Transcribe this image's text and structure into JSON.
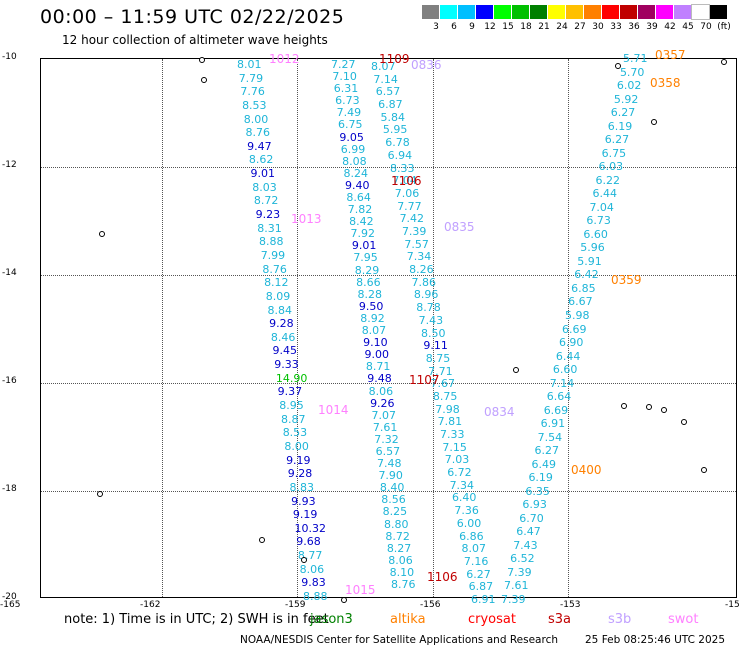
{
  "header": {
    "title": "00:00 – 11:59 UTC 02/22/2025",
    "subtitle": "12 hour collection of altimeter wave heights"
  },
  "colorbar": {
    "colors": [
      "#808080",
      "#00ffff",
      "#00bfff",
      "#0000ff",
      "#00ff00",
      "#00c000",
      "#008000",
      "#ffff00",
      "#ffc000",
      "#ff8000",
      "#ff0000",
      "#c00000",
      "#a00060",
      "#ff00ff",
      "#c080ff",
      "#ffffff",
      "#000000"
    ],
    "labels": [
      "3",
      "6",
      "9",
      "12",
      "15",
      "18",
      "21",
      "24",
      "27",
      "30",
      "33",
      "36",
      "39",
      "42",
      "45",
      "70",
      "(ft)"
    ]
  },
  "axes": {
    "y_ticks": [
      "-10",
      "-12",
      "-14",
      "-16",
      "-18",
      "-20"
    ],
    "x_ticks": [
      "-165",
      "-162",
      "-159",
      "-156",
      "-153",
      "-15"
    ]
  },
  "tracks": [
    {
      "name": "track-a",
      "values": [
        "8.01",
        "7.79",
        "7.76",
        "8.53",
        "8.00",
        "8.76",
        "9.47",
        "8.62",
        "9.01",
        "8.03",
        "8.72",
        "9.23",
        "8.31",
        "8.88",
        "7.99",
        "8.76",
        "8.12",
        "8.09",
        "8.84",
        "9.28",
        "8.46",
        "9.45",
        "9.33",
        "14.90",
        "9.37",
        "8.95",
        "8.87",
        "8.53",
        "8.00",
        "9.19",
        "9.28",
        "8.83",
        "9.93",
        "9.19",
        "10.32",
        "9.68",
        "8.77",
        "8.06",
        "9.83",
        "8.88"
      ]
    },
    {
      "name": "track-b",
      "values": [
        "7.27",
        "7.10",
        "6.31",
        "6.73",
        "7.49",
        "6.75",
        "9.05",
        "6.99",
        "8.08",
        "8.24",
        "9.40",
        "8.64",
        "7.82",
        "8.42",
        "7.92",
        "9.01",
        "7.95",
        "8.29",
        "8.66",
        "8.28",
        "9.50",
        "8.92",
        "8.07",
        "9.10",
        "9.00",
        "8.71",
        "9.48",
        "8.06",
        "9.26",
        "7.07",
        "7.61",
        "7.32",
        "6.57",
        "7.48",
        "7.90",
        "8.40",
        "8.56",
        "8.25",
        "8.80",
        "8.72",
        "8.27",
        "8.06",
        "8.10",
        "8.76"
      ]
    },
    {
      "name": "track-c",
      "values": [
        "8.07",
        "7.14",
        "6.57",
        "6.87",
        "5.84",
        "5.95",
        "6.78",
        "6.94",
        "8.33",
        "7.04",
        "7.06",
        "7.77",
        "7.42",
        "7.39",
        "7.57",
        "7.34",
        "8.26",
        "7.86",
        "8.96",
        "8.78",
        "7.43",
        "8.50",
        "9.11",
        "8.75",
        "7.71",
        "7.67",
        "8.75",
        "7.98",
        "7.81",
        "7.33",
        "7.15",
        "7.03",
        "6.72",
        "7.34",
        "6.40",
        "7.36",
        "6.00",
        "6.86",
        "8.07",
        "7.16",
        "6.27",
        "6.87",
        "6.91"
      ]
    },
    {
      "name": "track-d",
      "values": [
        "5.71",
        "5.70",
        "6.02",
        "5.92",
        "6.27",
        "6.19",
        "6.27",
        "6.75",
        "6.03",
        "6.22",
        "6.44",
        "7.04",
        "6.73",
        "6.60",
        "5.96",
        "5.91",
        "6.42",
        "6.85",
        "6.67",
        "5.98",
        "6.69",
        "6.90",
        "6.44",
        "6.60",
        "7.14",
        "6.64",
        "6.69",
        "6.91",
        "7.54",
        "6.27",
        "6.49",
        "6.19",
        "6.35",
        "6.93",
        "6.70",
        "6.47",
        "7.43",
        "6.52",
        "7.39",
        "7.61",
        "7.39"
      ]
    }
  ],
  "pass_labels": [
    "1012",
    "1109",
    "0836",
    "1106",
    "1013",
    "0835",
    "0357",
    "0358",
    "0359",
    "1107",
    "1014",
    "0834",
    "0400",
    "1106",
    "1015"
  ],
  "note": "note: 1) Time is in UTC; 2) SWH is in feet",
  "legend": [
    {
      "label": "jason3",
      "color": "#008000"
    },
    {
      "label": "altika",
      "color": "#ff8000"
    },
    {
      "label": "cryosat",
      "color": "#ff0000"
    },
    {
      "label": "s3a",
      "color": "#c00000"
    },
    {
      "label": "s3b",
      "color": "#c0a0ff"
    },
    {
      "label": "swot",
      "color": "#ff80ff"
    }
  ],
  "footer": {
    "credit": "NOAA/NESDIS Center for Satellite Applications and Research",
    "timestamp": "25 Feb 08:25:46 UTC 2025"
  }
}
